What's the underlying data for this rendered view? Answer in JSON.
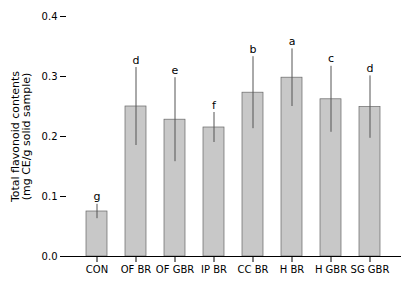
{
  "chart_data": {
    "type": "bar",
    "ylabel": "Total flavonoid contents\n(mg CE/g solid sample)",
    "categories": [
      "CON",
      "OF BR",
      "OF GBR",
      "IP BR",
      "CC BR",
      "H BR",
      "H GBR",
      "SG GBR"
    ],
    "values": [
      0.075,
      0.25,
      0.228,
      0.215,
      0.273,
      0.298,
      0.262,
      0.249
    ],
    "errors": [
      0.012,
      0.065,
      0.07,
      0.025,
      0.06,
      0.048,
      0.055,
      0.052
    ],
    "annotations": [
      "g",
      "d",
      "e",
      "f",
      "b",
      "a",
      "c",
      "d"
    ],
    "color": "#c8c8c8",
    "ylim": [
      0.0,
      0.4
    ],
    "yticks": [
      {
        "value": 0.0,
        "label": "0.0"
      },
      {
        "value": 0.1,
        "label": "0.1"
      },
      {
        "value": 0.2,
        "label": "0.2"
      },
      {
        "value": 0.3,
        "label": "0.3"
      },
      {
        "value": 0.4,
        "label": "0.4"
      }
    ],
    "grid": false
  }
}
